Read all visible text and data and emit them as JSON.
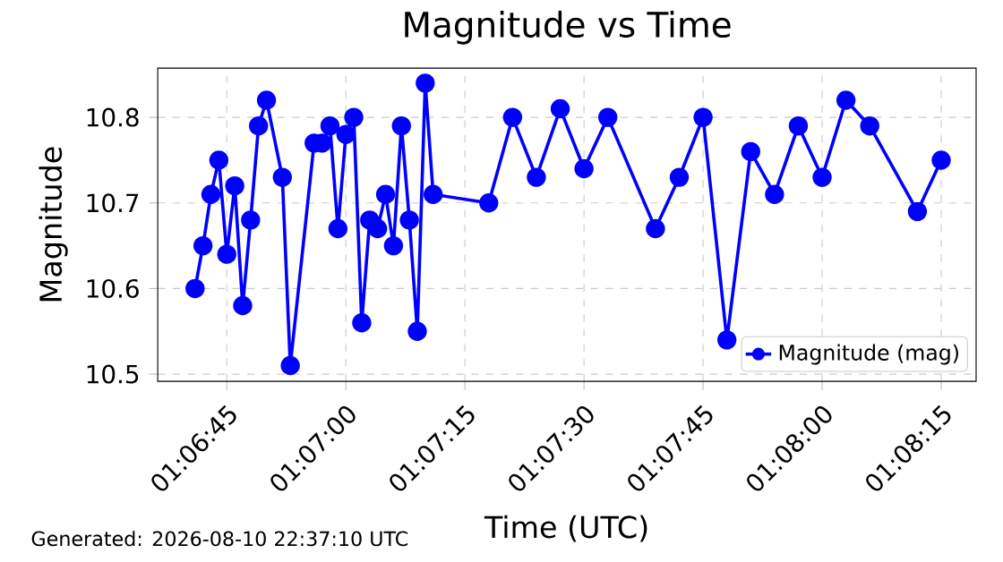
{
  "chart_data": {
    "type": "line",
    "title": "Magnitude vs Time",
    "xlabel": "Time (UTC)",
    "ylabel": "Magnitude",
    "annotations": [
      "Generated: 2026-08-10 22:37:10 UTC"
    ],
    "x": [
      1.111389,
      1.111667,
      1.111944,
      1.112222,
      1.1125,
      1.112778,
      1.113056,
      1.113333,
      1.113611,
      1.113889,
      1.114444,
      1.114722,
      1.115556,
      1.115833,
      1.116111,
      1.116389,
      1.116667,
      1.116944,
      1.117222,
      1.1175,
      1.117778,
      1.118056,
      1.118333,
      1.118611,
      1.118889,
      1.119167,
      1.119444,
      1.119722,
      1.121667,
      1.1225,
      1.123333,
      1.124167,
      1.125,
      1.125833,
      1.1275,
      1.128333,
      1.129167,
      1.13,
      1.130833,
      1.131667,
      1.1325,
      1.133333,
      1.134167,
      1.135,
      1.136667,
      1.1375
    ],
    "series": [
      {
        "name": "Magnitude (mag)",
        "color": "#0000ff",
        "values": [
          10.6,
          10.65,
          10.71,
          10.75,
          10.64,
          10.72,
          10.58,
          10.68,
          10.79,
          10.82,
          10.73,
          10.51,
          10.77,
          10.77,
          10.79,
          10.67,
          10.78,
          10.8,
          10.56,
          10.68,
          10.67,
          10.71,
          10.65,
          10.79,
          10.68,
          10.55,
          10.84,
          10.71,
          10.7,
          10.8,
          10.73,
          10.81,
          10.74,
          10.8,
          10.67,
          10.73,
          10.8,
          10.54,
          10.76,
          10.71,
          10.79,
          10.73,
          10.82,
          10.79,
          10.69,
          10.75
        ]
      }
    ],
    "xlim": [
      1.110083,
      1.138722
    ],
    "ylim": [
      10.4916,
      10.8575
    ],
    "xticks": [
      {
        "value": 1.1125,
        "label": "01:06:45"
      },
      {
        "value": 1.116667,
        "label": "01:07:00"
      },
      {
        "value": 1.120833,
        "label": "01:07:15"
      },
      {
        "value": 1.125,
        "label": "01:07:30"
      },
      {
        "value": 1.129167,
        "label": "01:07:45"
      },
      {
        "value": 1.133333,
        "label": "01:08:00"
      },
      {
        "value": 1.1375,
        "label": "01:08:15"
      }
    ],
    "yticks": [
      10.5,
      10.6,
      10.7,
      10.8
    ],
    "grid": true,
    "legend": "bottom right",
    "marker": "circle",
    "line_style": "solid"
  }
}
